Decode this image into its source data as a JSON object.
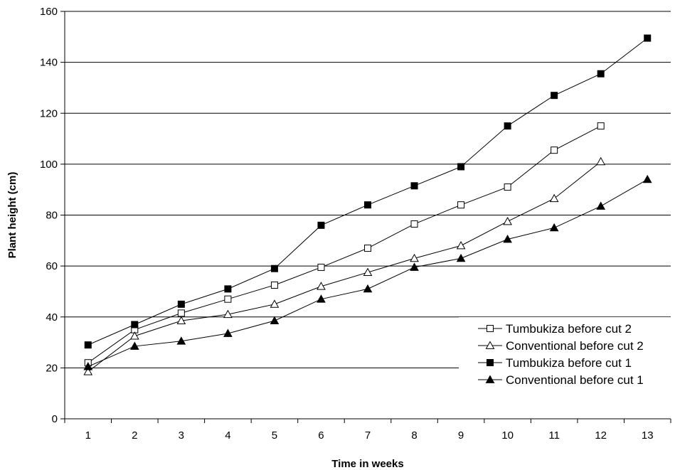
{
  "chart_data": {
    "type": "line",
    "title": "",
    "xlabel": "Time in weeks",
    "ylabel": "Plant height (cm)",
    "x": [
      1,
      2,
      3,
      4,
      5,
      6,
      7,
      8,
      9,
      10,
      11,
      12,
      13
    ],
    "xticks": [
      "1",
      "2",
      "3",
      "4",
      "5",
      "6",
      "7",
      "8",
      "9",
      "10",
      "11",
      "12",
      "13"
    ],
    "yticks": [
      "0",
      "20",
      "40",
      "60",
      "80",
      "100",
      "120",
      "140",
      "160"
    ],
    "ylim": [
      0,
      160
    ],
    "grid": "horizontal",
    "legend_position": "right",
    "series": [
      {
        "name": "Tumbukiza before cut 2",
        "marker": "open-square",
        "x": [
          1,
          2,
          3,
          4,
          5,
          6,
          7,
          8,
          9,
          10,
          11,
          12
        ],
        "values": [
          22,
          35,
          41.5,
          47,
          52.5,
          59.5,
          67,
          76.5,
          84,
          91,
          105.5,
          115
        ]
      },
      {
        "name": "Conventional before cut 2",
        "marker": "open-triangle",
        "x": [
          1,
          2,
          3,
          4,
          5,
          6,
          7,
          8,
          9,
          10,
          11,
          12
        ],
        "values": [
          18.5,
          32.5,
          38.5,
          41,
          45,
          52,
          57.5,
          63,
          68,
          77.5,
          86.5,
          101
        ]
      },
      {
        "name": "Tumbukiza before cut 1",
        "marker": "filled-square",
        "x": [
          1,
          2,
          3,
          4,
          5,
          6,
          7,
          8,
          9,
          10,
          11,
          12,
          13
        ],
        "values": [
          29,
          37,
          45,
          51,
          59,
          76,
          84,
          91.5,
          99,
          115,
          127,
          135.5,
          149.5
        ]
      },
      {
        "name": "Conventional before cut 1",
        "marker": "filled-triangle",
        "x": [
          1,
          2,
          3,
          4,
          5,
          6,
          7,
          8,
          9,
          10,
          11,
          12,
          13
        ],
        "values": [
          20.5,
          28.5,
          30.5,
          33.5,
          38.5,
          47,
          51,
          59.5,
          63,
          70.5,
          75,
          83.5,
          94
        ]
      }
    ]
  }
}
